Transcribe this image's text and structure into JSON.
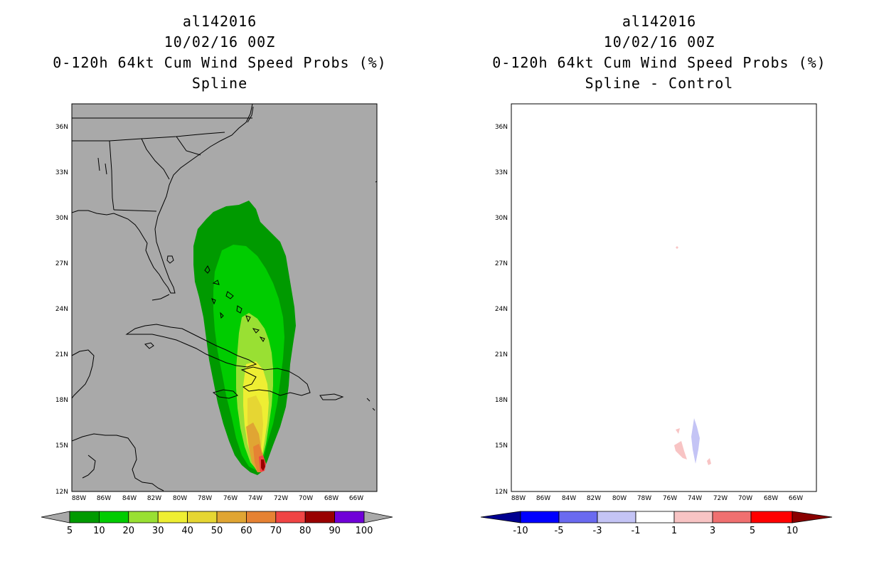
{
  "panels": [
    {
      "id": "left",
      "title_lines": [
        "al142016",
        "10/02/16 00Z",
        "0-120h 64kt Cum Wind Speed Probs (%)",
        "Spline"
      ],
      "background_color": "#a9a9a9",
      "colorbar": {
        "labels": [
          "5",
          "10",
          "20",
          "30",
          "40",
          "50",
          "60",
          "70",
          "80",
          "90",
          "100"
        ],
        "colors": [
          "#009a00",
          "#00cc00",
          "#99e033",
          "#eeee33",
          "#e6d633",
          "#e0a533",
          "#e68233",
          "#f04545",
          "#990000",
          "#7000d8"
        ],
        "end_arrow_color": "#a9a9a9"
      }
    },
    {
      "id": "right",
      "title_lines": [
        "al142016",
        "10/02/16 00Z",
        "0-120h 64kt Cum Wind Speed Probs (%)",
        "Spline - Control"
      ],
      "background_color": "#ffffff",
      "colorbar": {
        "labels": [
          "-10",
          "-5",
          "-3",
          "-1",
          "1",
          "3",
          "5",
          "10"
        ],
        "colors": [
          "#0000ff",
          "#6a6af0",
          "#c4c4f5",
          "#ffffff",
          "#f8c4c4",
          "#f07070",
          "#ff0000"
        ],
        "low_arrow_color": "#000090",
        "high_arrow_color": "#8a0000"
      }
    }
  ],
  "axes": {
    "lat_labels": [
      "36N",
      "33N",
      "30N",
      "27N",
      "24N",
      "21N",
      "18N",
      "15N",
      "12N"
    ],
    "lon_labels": [
      "88W",
      "86W",
      "84W",
      "82W",
      "80W",
      "78W",
      "76W",
      "74W",
      "72W",
      "70W",
      "68W",
      "66W"
    ]
  },
  "colors": {
    "coast": "#000000",
    "grid": "#c8c8c8"
  }
}
